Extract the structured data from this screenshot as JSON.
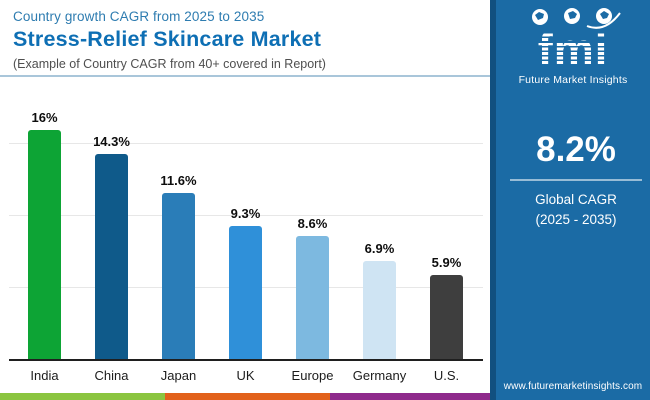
{
  "header": {
    "kicker": "Country growth CAGR from 2025 to 2035",
    "title": "Stress-Relief Skincare Market",
    "subtitle": "(Example of Country CAGR from 40+ covered in Report)"
  },
  "sidebar": {
    "logo_text": "fmi",
    "logo_caption": "Future Market Insights",
    "global_cagr_value": "8.2%",
    "global_cagr_label_line1": "Global CAGR",
    "global_cagr_label_line2": "(2025 - 2035)",
    "website": "www.futuremarketinsights.com",
    "background_color": "#1b6ba5",
    "edge_color": "#11507f"
  },
  "chart_data": {
    "type": "bar",
    "title": "Country growth CAGR from 2025 to 2035",
    "subtitle": "Stress-Relief Skincare Market",
    "categories": [
      "India",
      "China",
      "Japan",
      "UK",
      "Europe",
      "Germany",
      "U.S."
    ],
    "values": [
      16,
      14.3,
      11.6,
      9.3,
      8.6,
      6.9,
      5.9
    ],
    "value_labels": [
      "16%",
      "14.3%",
      "11.6%",
      "9.3%",
      "8.6%",
      "6.9%",
      "5.9%"
    ],
    "bar_colors": [
      "#0da435",
      "#0f5a8a",
      "#2a7db8",
      "#2f90d9",
      "#7db9e0",
      "#cfe4f3",
      "#3e3e3e"
    ],
    "xlabel": "",
    "ylabel": "",
    "ylim": [
      0,
      19
    ],
    "gridline_values": [
      5,
      10,
      15
    ],
    "grid": "horizontal",
    "legend": "none"
  },
  "footer": {
    "strip_colors": [
      "#8bc540",
      "#e2611b",
      "#8f2a8c"
    ]
  }
}
